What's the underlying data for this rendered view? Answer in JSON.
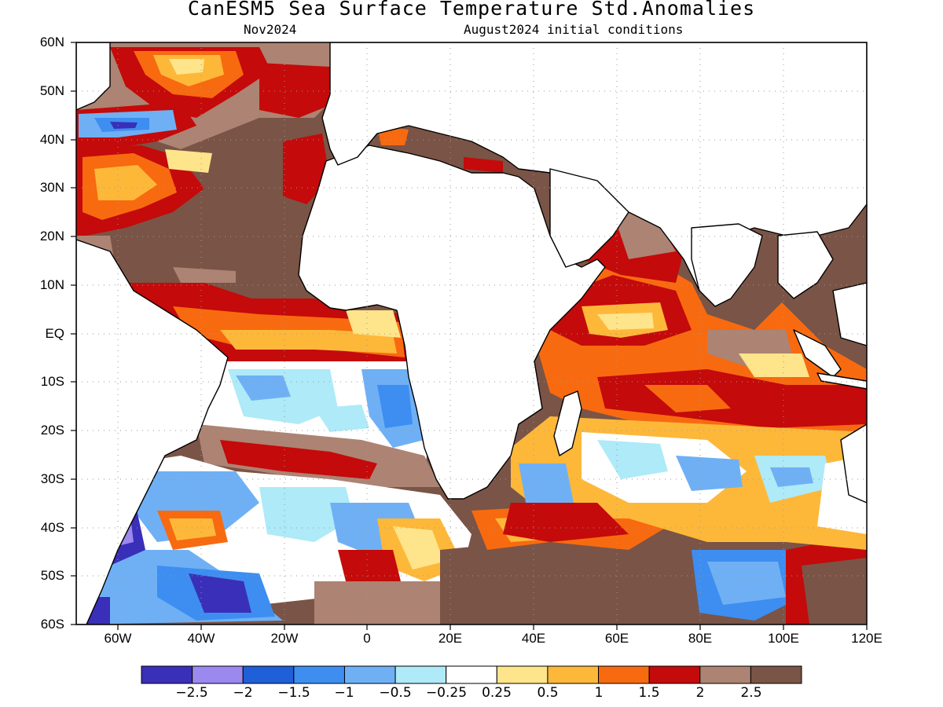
{
  "title": "CanESM5 Sea Surface Temperature Std.Anomalies",
  "valid_month": "Nov2024",
  "init_conditions": "August2024 initial conditions",
  "lat_labels": [
    "60N",
    "50N",
    "40N",
    "30N",
    "20N",
    "10N",
    "EQ",
    "10S",
    "20S",
    "30S",
    "40S",
    "50S",
    "60S"
  ],
  "lon_labels": [
    "60W",
    "40W",
    "20W",
    "0",
    "20E",
    "40E",
    "60E",
    "80E",
    "100E",
    "120E"
  ],
  "colorbar": {
    "labels": [
      "−2.5",
      "−2",
      "−1.5",
      "−1",
      "−0.5",
      "−0.25",
      "0.25",
      "0.5",
      "1",
      "1.5",
      "2",
      "2.5"
    ],
    "colors": [
      "#3a2fb8",
      "#9b89f0",
      "#1f5fd8",
      "#3d8ef0",
      "#6fb0f5",
      "#aeeaf8",
      "#ffffff",
      "#fee48a",
      "#fdb83a",
      "#f86a10",
      "#c40a0a",
      "#ad8373",
      "#7a5446"
    ]
  },
  "colors": {
    "land": "#ffffff",
    "coast": "#000000",
    "grid": "#9a9a9a"
  }
}
